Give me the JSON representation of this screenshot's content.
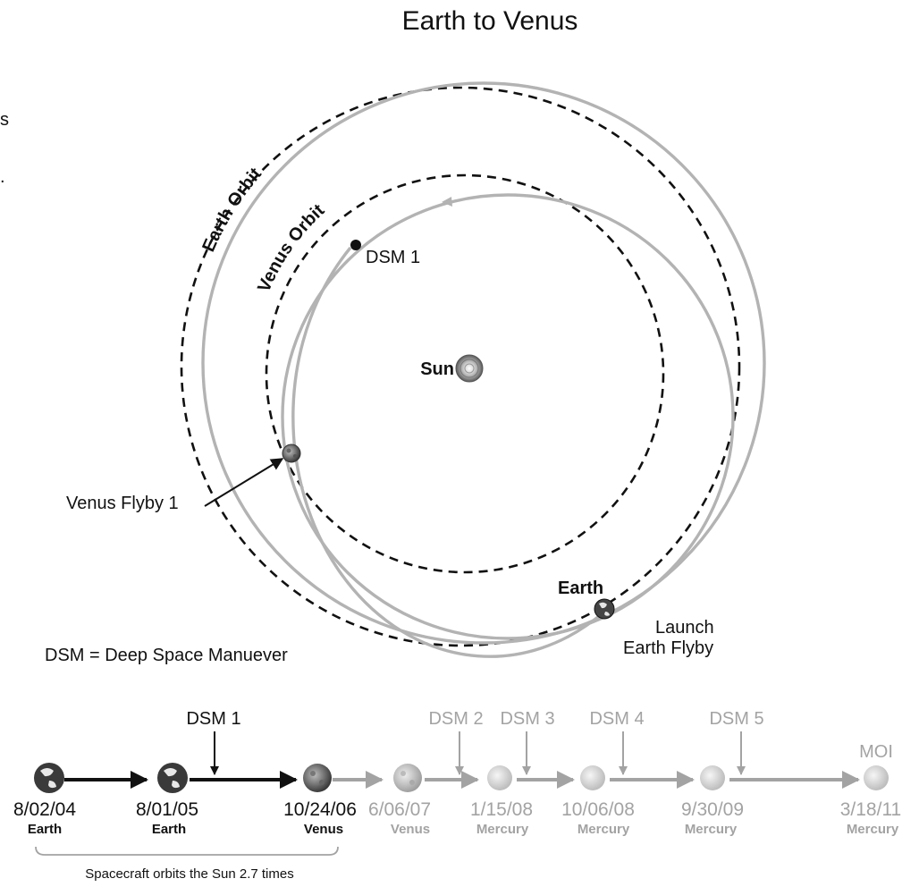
{
  "title": "Earth to Venus",
  "fragments": {
    "f1": "s",
    "f2": "."
  },
  "orbits": {
    "earth_orbit_label": "Earth Orbit",
    "venus_orbit_label": "Venus Orbit"
  },
  "bodies": {
    "sun_label": "Sun",
    "earth_label": "Earth",
    "dsm1_label": "DSM 1",
    "venus_flyby_label": "Venus Flyby 1",
    "launch_label_line1": "Launch",
    "launch_label_line2": "Earth Flyby"
  },
  "legend": {
    "dsm_note": "DSM = Deep Space Manuever"
  },
  "timeline": {
    "events": [
      {
        "date": "8/02/04",
        "body": "Earth",
        "active": true
      },
      {
        "date": "8/01/05",
        "body": "Earth",
        "active": true
      },
      {
        "date": "10/24/06",
        "body": "Venus",
        "active": true
      },
      {
        "date": "6/06/07",
        "body": "Venus",
        "active": false
      },
      {
        "date": "1/15/08",
        "body": "Mercury",
        "active": false
      },
      {
        "date": "10/06/08",
        "body": "Mercury",
        "active": false
      },
      {
        "date": "9/30/09",
        "body": "Mercury",
        "active": false
      },
      {
        "date": "3/18/11",
        "body": "Mercury",
        "active": false
      }
    ],
    "maneuvers": [
      {
        "label": "DSM 1",
        "active": true
      },
      {
        "label": "DSM 2",
        "active": false
      },
      {
        "label": "DSM 3",
        "active": false
      },
      {
        "label": "DSM 4",
        "active": false
      },
      {
        "label": "DSM 5",
        "active": false
      }
    ],
    "moi_label": "MOI",
    "bracket_caption": "Spacecraft orbits the Sun 2.7 times"
  },
  "colors": {
    "active": "#111111",
    "inactive": "#a3a3a3",
    "orbit_path": "#b3b3b3",
    "dashed_orbit": "#111111"
  }
}
